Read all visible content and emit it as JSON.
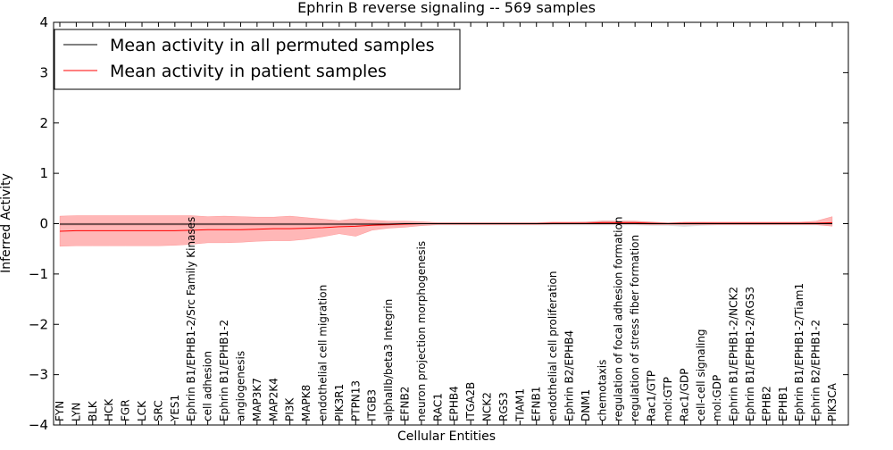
{
  "chart_data": {
    "type": "line",
    "title": "Ephrin B reverse signaling -- 569 samples",
    "xlabel": "Cellular Entities",
    "ylabel": "Inferred Activity",
    "ylim": [
      -4,
      4
    ],
    "yticks": [
      -4,
      -3,
      -2,
      -1,
      0,
      1,
      2,
      3,
      4
    ],
    "grid": false,
    "legend_position": "top-left",
    "categories": [
      "FYN",
      "LYN",
      "BLK",
      "HCK",
      "FGR",
      "LCK",
      "SRC",
      "YES1",
      "Ephrin B1/EPHB1-2/Src Family Kinases",
      "cell adhesion",
      "Ephrin B1/EPHB1-2",
      "angiogenesis",
      "MAP3K7",
      "MAP2K4",
      "PI3K",
      "MAPK8",
      "endothelial cell migration",
      "PIK3R1",
      "PTPN13",
      "ITGB3",
      "alphaIIb/beta3 Integrin",
      "EFNB2",
      "neuron projection morphogenesis",
      "RAC1",
      "EPHB4",
      "ITGA2B",
      "NCK2",
      "RGS3",
      "TIAM1",
      "EFNB1",
      "endothelial cell proliferation",
      "Ephrin B2/EPHB4",
      "DNM1",
      "chemotaxis",
      "regulation of focal adhesion formation",
      "regulation of stress fiber formation",
      "Rac1/GTP",
      "mol:GTP",
      "Rac1/GDP",
      "cell-cell signaling",
      "mol:GDP",
      "Ephrin B1/EPHB1-2/NCK2",
      "Ephrin B1/EPHB1-2/RGS3",
      "EPHB2",
      "EPHB1",
      "Ephrin B1/EPHB1-2/Tiam1",
      "Ephrin B2/EPHB1-2",
      "PIK3CA"
    ],
    "series": [
      {
        "name": "Mean activity in all permuted samples",
        "color": "#000000",
        "values": [
          -0.01,
          -0.01,
          -0.01,
          -0.01,
          -0.01,
          -0.01,
          -0.01,
          -0.01,
          -0.01,
          -0.01,
          -0.01,
          -0.01,
          -0.01,
          -0.01,
          -0.01,
          -0.01,
          -0.01,
          -0.01,
          -0.01,
          -0.01,
          -0.01,
          0.0,
          0.0,
          0.0,
          0.0,
          0.0,
          0.0,
          0.0,
          0.0,
          0.0,
          0.0,
          0.0,
          0.0,
          0.0,
          0.0,
          0.0,
          0.0,
          0.0,
          0.0,
          0.0,
          0.0,
          0.0,
          0.0,
          0.0,
          0.0,
          0.0,
          0.0,
          0.0
        ],
        "band_upper": [
          0.02,
          0.02,
          0.02,
          0.02,
          0.02,
          0.02,
          0.02,
          0.02,
          0.02,
          0.02,
          0.02,
          0.02,
          0.02,
          0.02,
          0.02,
          0.02,
          0.02,
          0.02,
          0.02,
          0.02,
          0.02,
          0.02,
          0.02,
          0.03,
          0.03,
          0.03,
          0.03,
          0.03,
          0.03,
          0.03,
          0.03,
          0.03,
          0.04,
          0.06,
          0.06,
          0.05,
          0.04,
          0.02,
          0.02,
          0.03,
          0.02,
          0.02,
          0.02,
          0.02,
          0.02,
          0.02,
          0.02,
          0.02
        ],
        "band_lower": [
          -0.04,
          -0.04,
          -0.04,
          -0.04,
          -0.04,
          -0.04,
          -0.04,
          -0.04,
          -0.04,
          -0.04,
          -0.04,
          -0.04,
          -0.04,
          -0.04,
          -0.04,
          -0.04,
          -0.04,
          -0.04,
          -0.04,
          -0.04,
          -0.04,
          -0.03,
          -0.03,
          -0.03,
          -0.03,
          -0.03,
          -0.03,
          -0.03,
          -0.03,
          -0.03,
          -0.03,
          -0.03,
          -0.03,
          -0.03,
          -0.03,
          -0.03,
          -0.04,
          -0.04,
          -0.06,
          -0.04,
          -0.03,
          -0.03,
          -0.03,
          -0.03,
          -0.03,
          -0.03,
          -0.03,
          -0.03
        ]
      },
      {
        "name": "Mean activity in patient samples",
        "color": "#ff0000",
        "band_color": "#ff6060",
        "values": [
          -0.15,
          -0.14,
          -0.14,
          -0.14,
          -0.14,
          -0.14,
          -0.14,
          -0.14,
          -0.13,
          -0.12,
          -0.12,
          -0.12,
          -0.11,
          -0.1,
          -0.1,
          -0.09,
          -0.08,
          -0.06,
          -0.05,
          -0.03,
          -0.02,
          -0.01,
          0.0,
          0.0,
          0.0,
          0.0,
          0.0,
          0.0,
          0.0,
          0.0,
          0.01,
          0.01,
          0.01,
          0.02,
          0.02,
          0.02,
          0.01,
          0.0,
          0.01,
          0.01,
          0.01,
          0.01,
          0.01,
          0.01,
          0.01,
          0.01,
          0.01,
          0.02
        ],
        "band_upper": [
          0.15,
          0.16,
          0.16,
          0.16,
          0.16,
          0.16,
          0.16,
          0.16,
          0.16,
          0.14,
          0.15,
          0.14,
          0.13,
          0.13,
          0.15,
          0.12,
          0.09,
          0.06,
          0.1,
          0.07,
          0.05,
          0.05,
          0.04,
          0.02,
          0.02,
          0.02,
          0.02,
          0.02,
          0.02,
          0.02,
          0.03,
          0.03,
          0.03,
          0.05,
          0.05,
          0.05,
          0.03,
          0.02,
          0.03,
          0.03,
          0.03,
          0.03,
          0.03,
          0.03,
          0.03,
          0.03,
          0.05,
          0.14
        ],
        "band_lower": [
          -0.45,
          -0.44,
          -0.44,
          -0.44,
          -0.44,
          -0.44,
          -0.44,
          -0.43,
          -0.41,
          -0.38,
          -0.38,
          -0.37,
          -0.35,
          -0.34,
          -0.34,
          -0.31,
          -0.26,
          -0.2,
          -0.25,
          -0.13,
          -0.09,
          -0.07,
          -0.04,
          -0.02,
          -0.02,
          -0.02,
          -0.02,
          -0.02,
          -0.02,
          -0.02,
          -0.01,
          -0.01,
          -0.01,
          -0.01,
          -0.01,
          -0.01,
          -0.02,
          -0.02,
          -0.02,
          -0.02,
          -0.02,
          -0.02,
          -0.02,
          -0.02,
          -0.02,
          -0.02,
          -0.02,
          -0.05
        ]
      }
    ]
  }
}
